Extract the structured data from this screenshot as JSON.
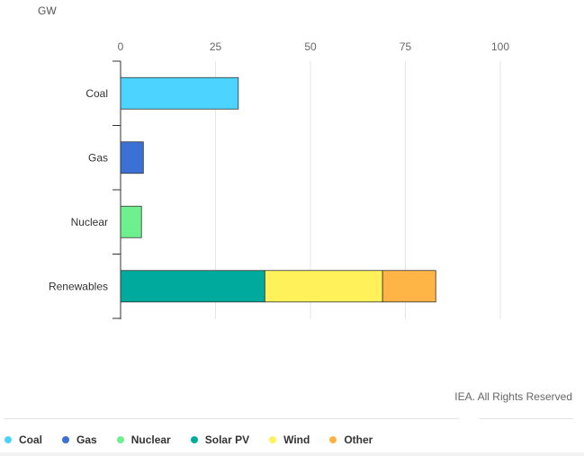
{
  "chart_data": {
    "type": "bar",
    "orientation": "horizontal",
    "stacked": true,
    "unit": "GW",
    "xlim": [
      0,
      100
    ],
    "xticks": [
      "0",
      "25",
      "50",
      "75",
      "100"
    ],
    "categories": [
      "Coal",
      "Gas",
      "Nuclear",
      "Renewables"
    ],
    "series": [
      {
        "name": "Coal",
        "color": "#4cd3ff",
        "values": [
          31,
          0,
          0,
          0
        ]
      },
      {
        "name": "Gas",
        "color": "#3b70d4",
        "values": [
          0,
          6,
          0,
          0
        ]
      },
      {
        "name": "Nuclear",
        "color": "#6ef08e",
        "values": [
          0,
          0,
          5.5,
          0
        ]
      },
      {
        "name": "Solar PV",
        "color": "#00aa9c",
        "values": [
          0,
          0,
          0,
          38
        ]
      },
      {
        "name": "Wind",
        "color": "#fff159",
        "values": [
          0,
          0,
          0,
          31
        ]
      },
      {
        "name": "Other",
        "color": "#ffb445",
        "values": [
          0,
          0,
          0,
          14
        ]
      }
    ],
    "grid": true,
    "legend_position": "bottom"
  },
  "credit": "IEA. All Rights Reserved"
}
